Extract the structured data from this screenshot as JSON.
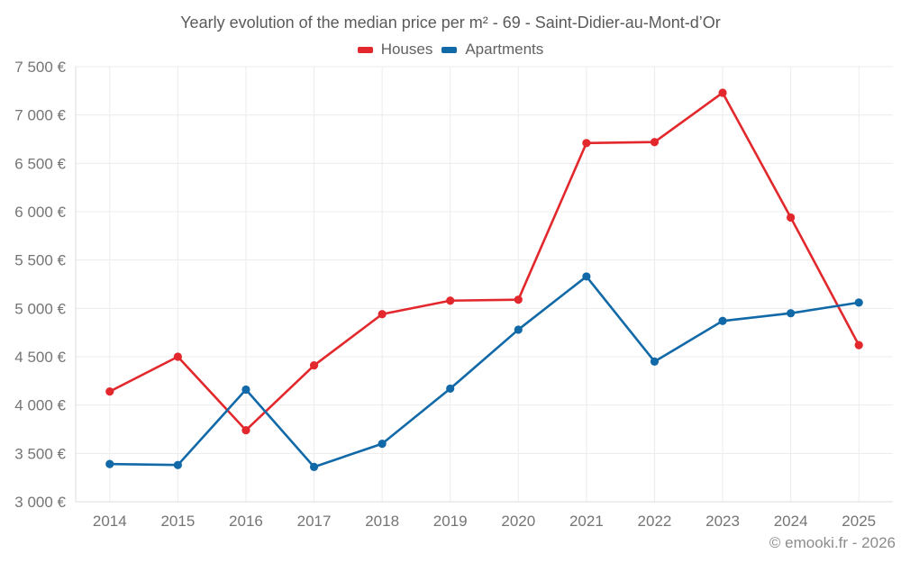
{
  "title": "Yearly evolution of the median price per m² - 69 - Saint-Didier-au-Mont-d’Or",
  "attribution": "© emooki.fr - 2026",
  "chart_data": {
    "type": "line",
    "title": "Yearly evolution of the median price per m² - 69 - Saint-Didier-au-Mont-d’Or",
    "categories": [
      "2014",
      "2015",
      "2016",
      "2017",
      "2018",
      "2019",
      "2020",
      "2021",
      "2022",
      "2023",
      "2024",
      "2025"
    ],
    "series": [
      {
        "name": "Houses",
        "color": "#e2282c",
        "values": [
          4140,
          4500,
          3740,
          4410,
          4940,
          5080,
          5090,
          6710,
          6720,
          7230,
          5940,
          4620
        ]
      },
      {
        "name": "Apartments",
        "color": "#1269a8",
        "values": [
          3390,
          3380,
          4160,
          3360,
          3600,
          4170,
          4780,
          5330,
          4450,
          4870,
          4950,
          5060
        ]
      }
    ],
    "xlabel": "",
    "ylabel": "",
    "ylim": [
      3000,
      7500
    ],
    "ytick_step": 500,
    "ytick_labels": [
      "3 000 €",
      "3 500 €",
      "4 000 €",
      "4 500 €",
      "5 000 €",
      "5 500 €",
      "6 000 €",
      "6 500 €",
      "7 000 €",
      "7 500 €"
    ],
    "grid": true,
    "legend_position": "top"
  }
}
